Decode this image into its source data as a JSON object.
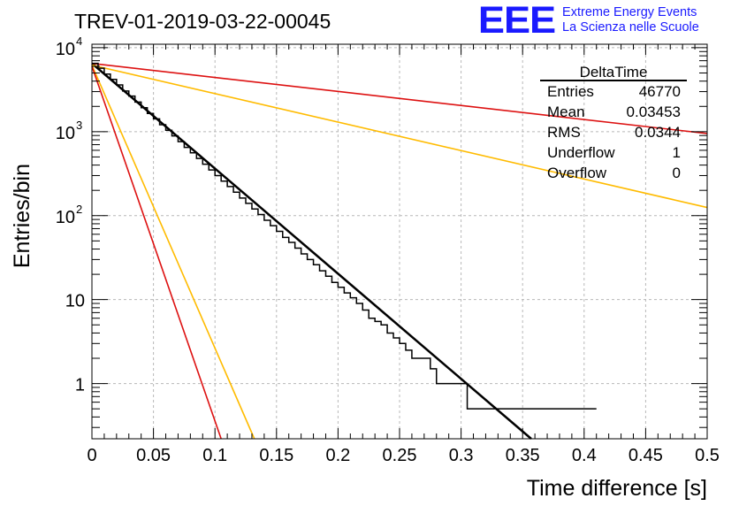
{
  "title": "TREV-01-2019-03-22-00045",
  "logo": {
    "mark": "EEE",
    "line1": "Extreme Energy Events",
    "line2": "La Scienza nelle Scuole",
    "color": "#1a1aff"
  },
  "stats": {
    "name": "DeltaTime",
    "rows": [
      {
        "label": "Entries",
        "value": "46770"
      },
      {
        "label": "Mean",
        "value": "0.03453"
      },
      {
        "label": "RMS",
        "value": "0.0344"
      },
      {
        "label": "Underflow",
        "value": "1"
      },
      {
        "label": "Overflow",
        "value": "0"
      }
    ]
  },
  "chart_data": {
    "type": "line",
    "xlabel": "Time difference [s]",
    "ylabel": "Entries/bin",
    "xlim": [
      0,
      0.5
    ],
    "ylim": [
      0.22,
      11000
    ],
    "log_y": true,
    "grid": true,
    "x_ticks": [
      "0",
      "0.05",
      "0.1",
      "0.15",
      "0.2",
      "0.25",
      "0.3",
      "0.35",
      "0.4",
      "0.45",
      "0.5"
    ],
    "y_ticks": [
      {
        "value": 1,
        "label": "1"
      },
      {
        "value": 10,
        "label": "10"
      },
      {
        "value": 100,
        "label": "10",
        "exp": "2"
      },
      {
        "value": 1000,
        "label": "10",
        "exp": "3"
      },
      {
        "value": 10000,
        "label": "10",
        "exp": "4"
      }
    ],
    "histogram": {
      "bin_width": 0.005,
      "color": "#000000",
      "counts": [
        6500,
        5700,
        4850,
        4200,
        3600,
        3050,
        2650,
        2250,
        1930,
        1650,
        1420,
        1210,
        1040,
        890,
        760,
        650,
        560,
        480,
        410,
        350,
        300,
        258,
        222,
        190,
        162,
        140,
        120,
        103,
        88,
        76,
        65,
        55,
        48,
        41,
        35,
        30,
        26,
        22,
        19,
        16,
        14,
        12,
        10.5,
        9,
        7.5,
        6,
        5.5,
        5,
        4,
        3.5,
        3,
        2.5,
        2,
        2,
        2,
        1.5,
        1,
        1,
        1,
        1,
        1,
        0.5,
        0.5,
        0.5,
        0.5,
        0.5,
        0.5,
        0.5,
        0.5,
        0.5,
        0.5,
        0.5,
        0.5,
        0.5,
        0.5,
        0.5,
        0.5,
        0.5,
        0.5,
        0.5,
        0.5,
        0.5
      ]
    },
    "curves": [
      {
        "color": "#000000",
        "y0": 6500,
        "y1": 0.22,
        "x1": 0.357,
        "width": 2.5
      },
      {
        "color": "#dd1111",
        "y0": 6500,
        "y1": 950,
        "x1": 0.5,
        "width": 1.6
      },
      {
        "color": "#ffbb00",
        "y0": 6200,
        "y1": 125,
        "x1": 0.5,
        "width": 1.6
      },
      {
        "color": "#ffbb00",
        "y0": 6200,
        "y1": 0.22,
        "x1": 0.132,
        "width": 1.6
      },
      {
        "color": "#dd1111",
        "y0": 6000,
        "y1": 0.22,
        "x1": 0.105,
        "width": 1.6
      }
    ]
  }
}
